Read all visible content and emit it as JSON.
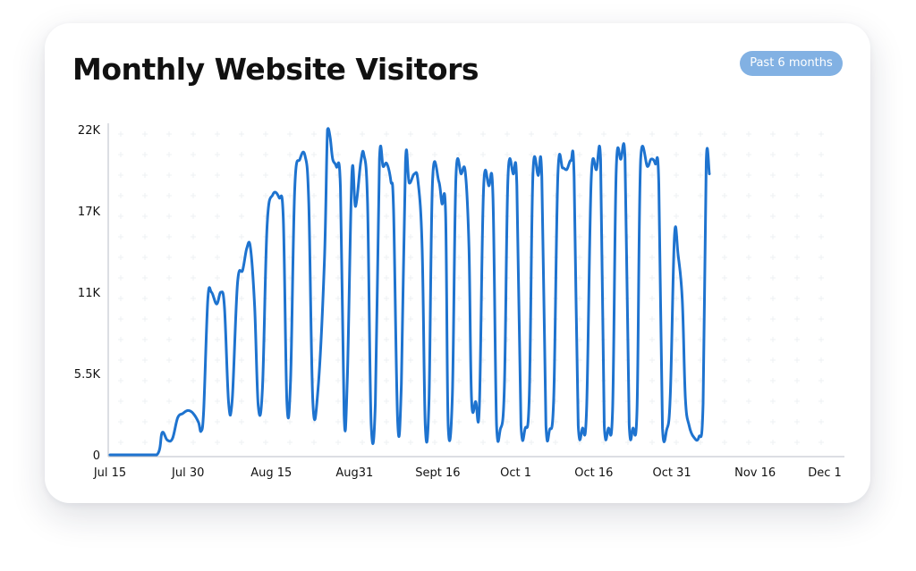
{
  "title": "Monthly Website Visitors",
  "badge": "Past 6 months",
  "colors": {
    "line": "#1e73cf",
    "badge": "#82b1e3",
    "axis": "#b9bec7"
  },
  "chart_data": {
    "type": "line",
    "title": "Monthly Website Visitors",
    "xlabel": "",
    "ylabel": "",
    "x_range": [
      0,
      141
    ],
    "x_unit": "days from Jul 15",
    "ylim": [
      0,
      22000
    ],
    "yticks": [
      {
        "v": 0,
        "label": "0"
      },
      {
        "v": 5500,
        "label": "5.5K"
      },
      {
        "v": 11000,
        "label": "11K"
      },
      {
        "v": 16500,
        "label": "17K"
      },
      {
        "v": 22000,
        "label": "22K"
      }
    ],
    "xticks": [
      {
        "d": 0,
        "label": "Jul 15"
      },
      {
        "d": 15,
        "label": "Jul 30"
      },
      {
        "d": 31,
        "label": "Aug 15"
      },
      {
        "d": 47,
        "label": "Aug31"
      },
      {
        "d": 63,
        "label": "Sept 16"
      },
      {
        "d": 78,
        "label": "Oct 1"
      },
      {
        "d": 93,
        "label": "Oct 16"
      },
      {
        "d": 108,
        "label": "Oct 31"
      },
      {
        "d": 124,
        "label": "Nov 16"
      },
      {
        "d": 139,
        "label": "Dec 1"
      }
    ],
    "grid": "dotted",
    "series": [
      {
        "values": [
          [
            0,
            0
          ],
          [
            5,
            0
          ],
          [
            9,
            0
          ],
          [
            10,
            1500
          ],
          [
            11,
            1000
          ],
          [
            12,
            1100
          ],
          [
            13,
            2500
          ],
          [
            14,
            2800
          ],
          [
            15,
            3000
          ],
          [
            16,
            2800
          ],
          [
            17,
            2200
          ],
          [
            17.5,
            1600
          ],
          [
            18,
            3000
          ],
          [
            18.8,
            10500
          ],
          [
            19.5,
            11000
          ],
          [
            20.5,
            10200
          ],
          [
            21.3,
            11000
          ],
          [
            22,
            10000
          ],
          [
            22.8,
            3500
          ],
          [
            23.5,
            3800
          ],
          [
            24.5,
            11600
          ],
          [
            25.5,
            12500
          ],
          [
            26.3,
            14000
          ],
          [
            27,
            14000
          ],
          [
            27.8,
            10000
          ],
          [
            28.5,
            3300
          ],
          [
            29.3,
            4500
          ],
          [
            30.2,
            15500
          ],
          [
            31.3,
            17600
          ],
          [
            32.5,
            17400
          ],
          [
            33.3,
            16000
          ],
          [
            34,
            3600
          ],
          [
            34.7,
            5000
          ],
          [
            35.5,
            18000
          ],
          [
            36.5,
            20000
          ],
          [
            37.5,
            20200
          ],
          [
            38.2,
            17000
          ],
          [
            39,
            3500
          ],
          [
            40,
            4500
          ],
          [
            41.2,
            13000
          ],
          [
            41.8,
            22000
          ],
          [
            42.3,
            21500
          ],
          [
            42.8,
            20000
          ],
          [
            43.5,
            19500
          ],
          [
            44.3,
            18000
          ],
          [
            45,
            2700
          ],
          [
            45.6,
            5000
          ],
          [
            46.5,
            19000
          ],
          [
            47.2,
            16800
          ],
          [
            48.2,
            19800
          ],
          [
            48.8,
            20300
          ],
          [
            49.5,
            17000
          ],
          [
            50.2,
            2100
          ],
          [
            51,
            3500
          ],
          [
            51.8,
            20000
          ],
          [
            52.5,
            19500
          ],
          [
            53.2,
            19700
          ],
          [
            54,
            18500
          ],
          [
            54.5,
            16500
          ],
          [
            55.3,
            2200
          ],
          [
            56,
            4800
          ],
          [
            56.8,
            19800
          ],
          [
            57.5,
            18400
          ],
          [
            58.5,
            19000
          ],
          [
            59.2,
            18500
          ],
          [
            60,
            14000
          ],
          [
            60.6,
            2000
          ],
          [
            61.3,
            3500
          ],
          [
            62,
            18600
          ],
          [
            63.2,
            18500
          ],
          [
            63.8,
            17000
          ],
          [
            64.5,
            16400
          ],
          [
            65,
            2000
          ],
          [
            65.8,
            4000
          ],
          [
            66.5,
            18800
          ],
          [
            67.5,
            19000
          ],
          [
            68.3,
            19100
          ],
          [
            69,
            14000
          ],
          [
            69.5,
            3700
          ],
          [
            70.3,
            3600
          ],
          [
            71,
            3300
          ],
          [
            71.8,
            18000
          ],
          [
            72.8,
            18200
          ],
          [
            73.6,
            17600
          ],
          [
            74.3,
            2000
          ],
          [
            75,
            1700
          ],
          [
            75.8,
            4500
          ],
          [
            76.5,
            18800
          ],
          [
            77.5,
            19000
          ],
          [
            78.2,
            18200
          ],
          [
            79,
            2000
          ],
          [
            79.8,
            1800
          ],
          [
            80.6,
            4000
          ],
          [
            81.3,
            19000
          ],
          [
            82.3,
            18900
          ],
          [
            83,
            18800
          ],
          [
            83.8,
            2000
          ],
          [
            84.5,
            1700
          ],
          [
            85.3,
            4000
          ],
          [
            86.1,
            19000
          ],
          [
            87,
            19400
          ],
          [
            87.8,
            19300
          ],
          [
            88.6,
            19900
          ],
          [
            89.2,
            18800
          ],
          [
            90,
            2000
          ],
          [
            90.8,
            1800
          ],
          [
            91.6,
            3000
          ],
          [
            92.5,
            18600
          ],
          [
            93.5,
            19300
          ],
          [
            94.3,
            20000
          ],
          [
            95,
            2000
          ],
          [
            95.8,
            1800
          ],
          [
            96.6,
            3000
          ],
          [
            97.3,
            19300
          ],
          [
            98.2,
            20000
          ],
          [
            99,
            20100
          ],
          [
            99.8,
            2000
          ],
          [
            100.5,
            1800
          ],
          [
            101.3,
            3000
          ],
          [
            102,
            20000
          ],
          [
            103.3,
            19500
          ],
          [
            104,
            20000
          ],
          [
            104.8,
            19700
          ],
          [
            105.5,
            18300
          ],
          [
            106.2,
            1800
          ],
          [
            107,
            1700
          ],
          [
            107.7,
            4000
          ],
          [
            108.5,
            14800
          ],
          [
            109.2,
            13500
          ],
          [
            110,
            10500
          ],
          [
            110.6,
            3800
          ],
          [
            111.3,
            2000
          ],
          [
            112.2,
            1200
          ],
          [
            113.2,
            1200
          ],
          [
            114,
            3500
          ],
          [
            114.6,
            19800
          ],
          [
            115.2,
            19000
          ]
        ]
      }
    ]
  }
}
